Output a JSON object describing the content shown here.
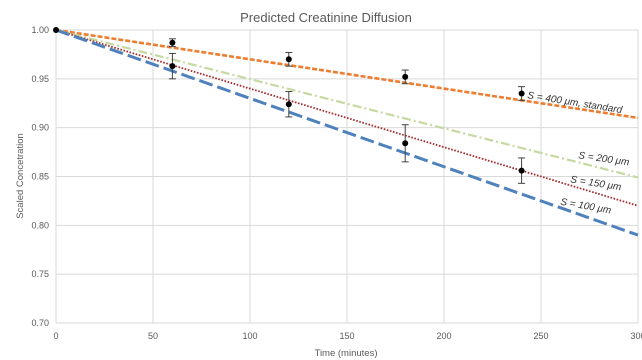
{
  "chart_data": {
    "type": "line",
    "title": "Predicted Creatinine Diffusion",
    "xlabel": "Time (minutes)",
    "ylabel": "Scaled Concetration",
    "xlim": [
      0,
      300
    ],
    "ylim": [
      0.7,
      1.0
    ],
    "x_ticks": [
      "0",
      "50",
      "100",
      "150",
      "200",
      "250",
      "300"
    ],
    "y_ticks": [
      "0.70",
      "0.75",
      "0.80",
      "0.85",
      "0.90",
      "0.95",
      "1.00"
    ],
    "grid": true,
    "series": [
      {
        "name": "S = 400 μm, standard",
        "color": "#ED7D31",
        "dash": "short-dash",
        "x": [
          0,
          300
        ],
        "y": [
          1.0,
          0.91
        ]
      },
      {
        "name": "S = 200 μm",
        "color": "#C5D9A0",
        "dash": "dash-dot",
        "x": [
          0,
          300
        ],
        "y": [
          1.0,
          0.849
        ]
      },
      {
        "name": "S = 150 μm",
        "color": "#A52A2A",
        "dash": "dotted",
        "x": [
          0,
          300
        ],
        "y": [
          1.0,
          0.82
        ]
      },
      {
        "name": "S = 100 μm",
        "color": "#4F81BD",
        "dash": "long-dash",
        "x": [
          0,
          300
        ],
        "y": [
          1.0,
          0.79
        ]
      }
    ],
    "measurements": [
      {
        "x": [
          0,
          60,
          120,
          180,
          240
        ],
        "y": [
          1.0,
          0.987,
          0.97,
          0.952,
          0.935
        ],
        "err": [
          0,
          0.004,
          0.007,
          0.007,
          0.007
        ]
      },
      {
        "x": [
          60,
          120,
          180,
          240
        ],
        "y": [
          0.963,
          0.924,
          0.884,
          0.856
        ],
        "err": [
          0.013,
          0.013,
          0.019,
          0.013
        ]
      }
    ]
  }
}
